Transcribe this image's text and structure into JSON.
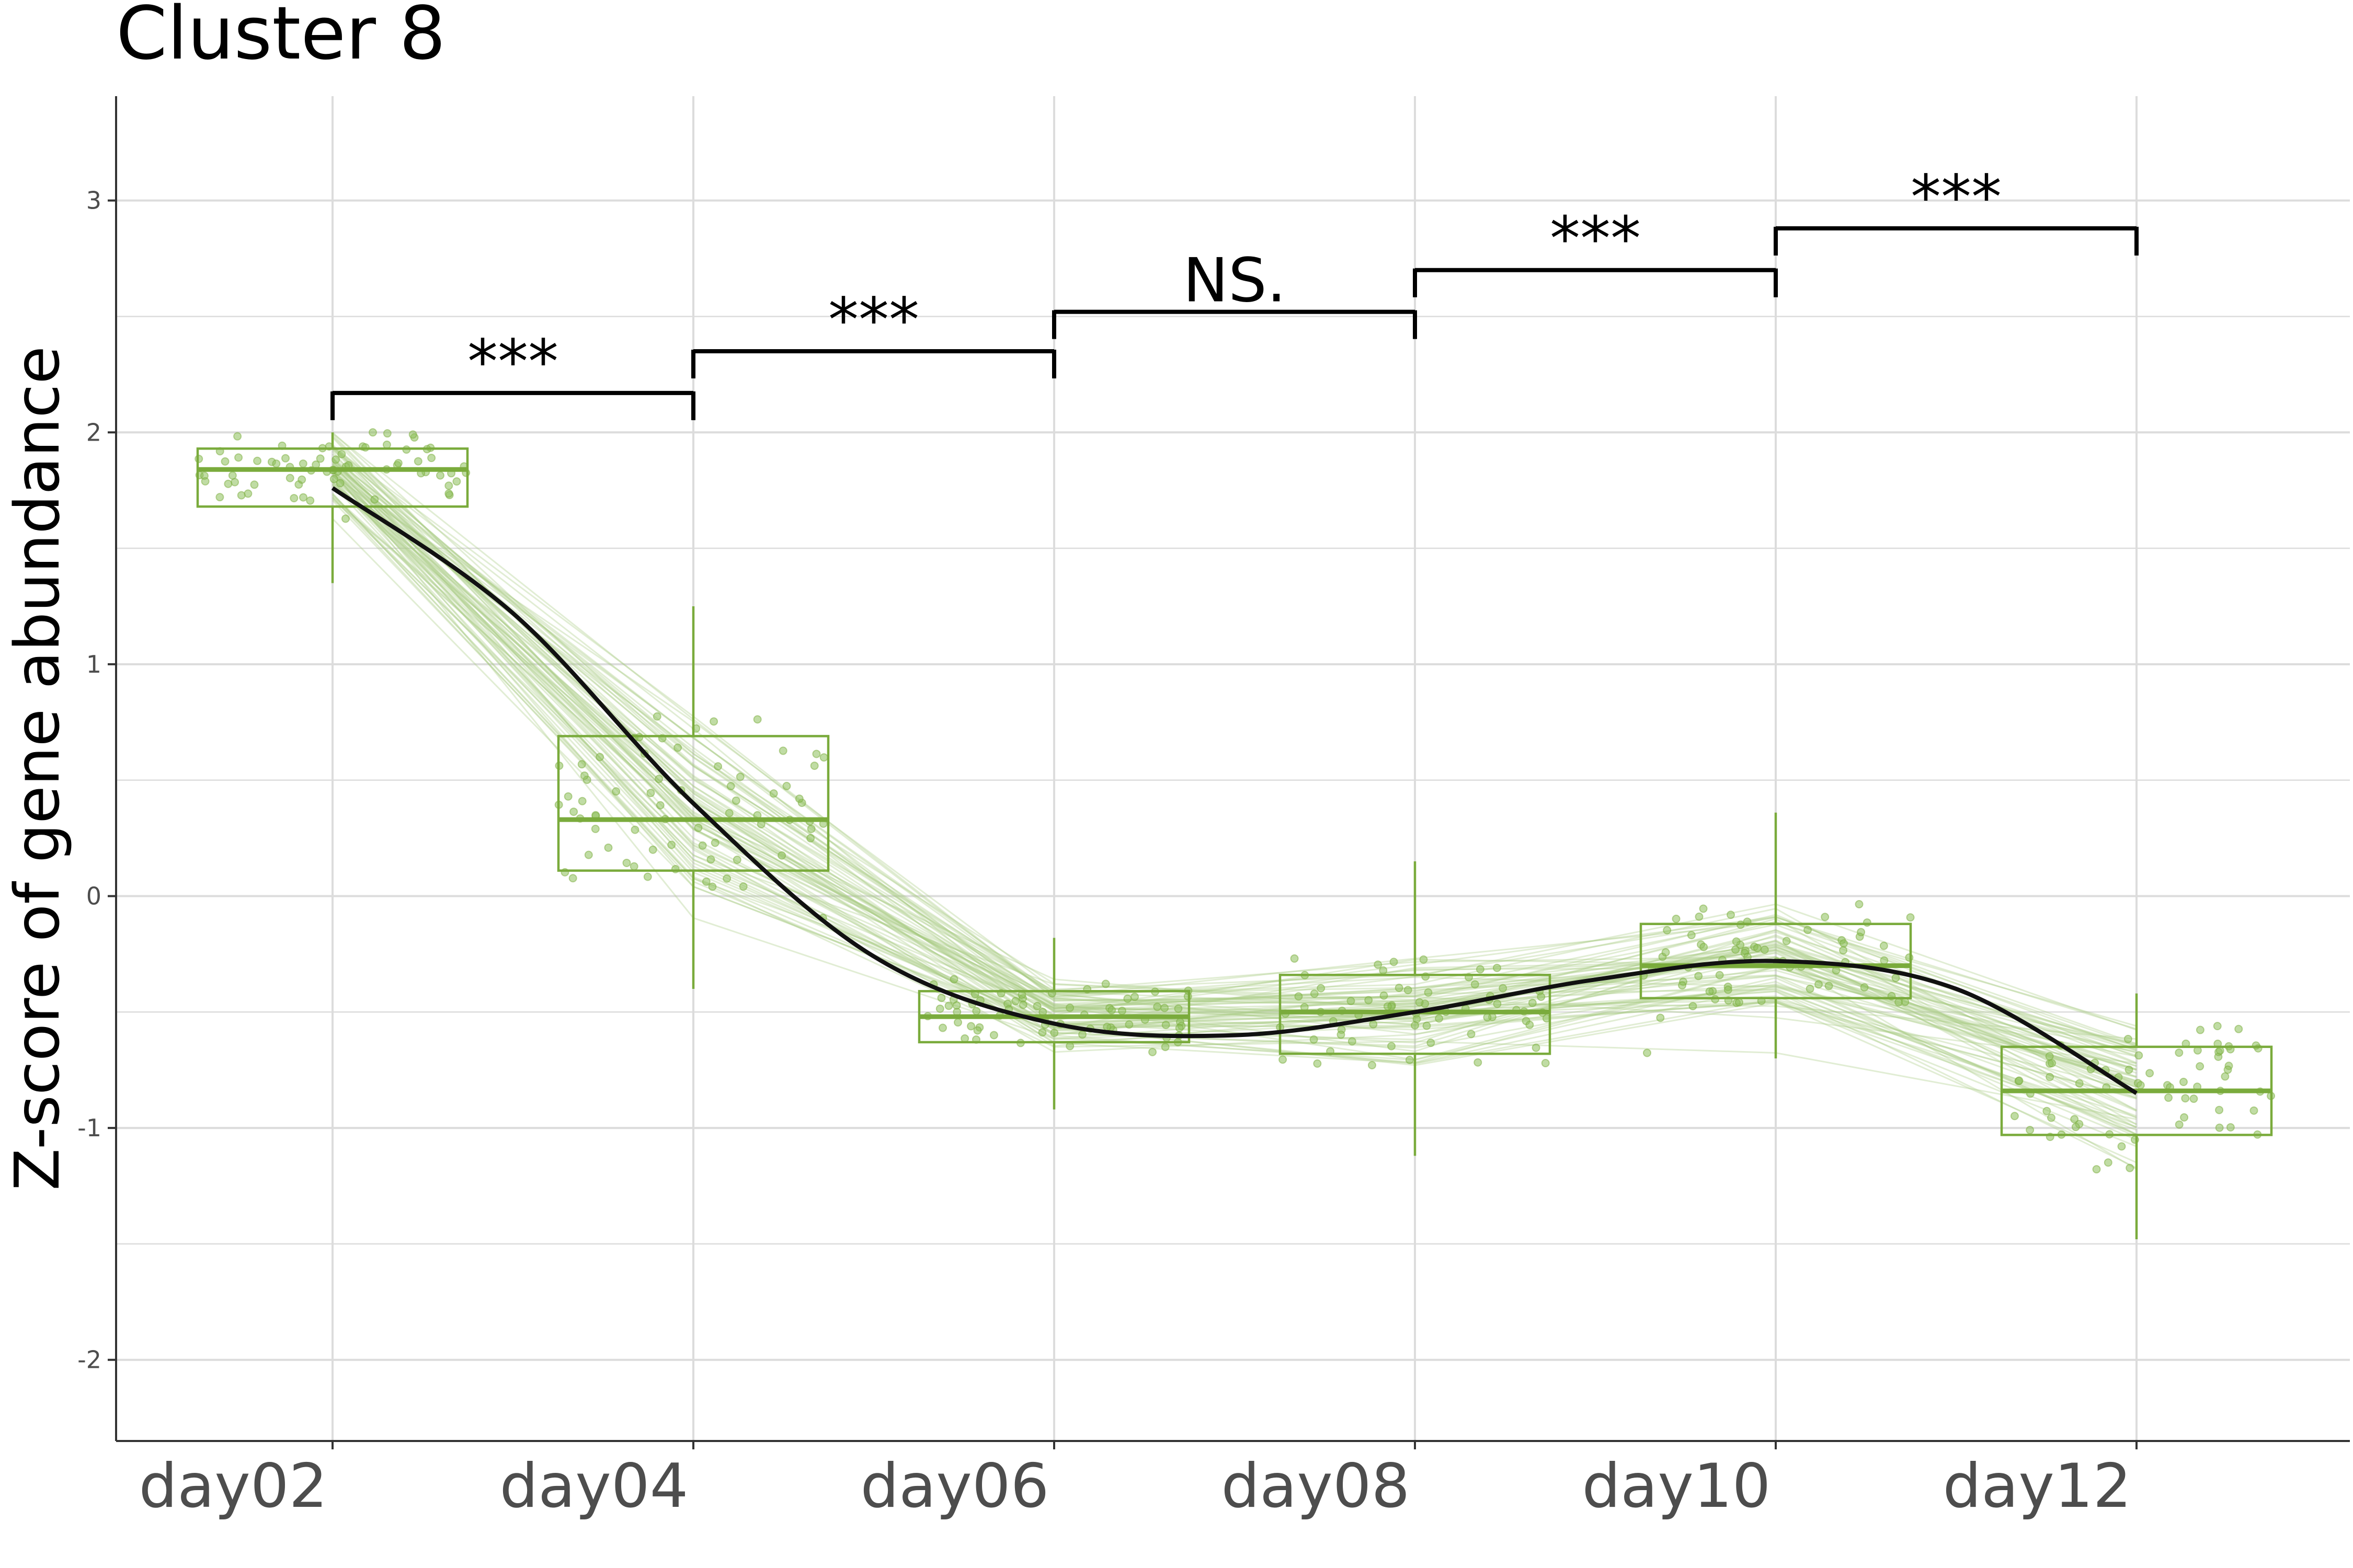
{
  "chart_data": {
    "type": "box",
    "title": "Cluster 8",
    "xlabel": "",
    "ylabel": "Z-score of gene abundance",
    "categories": [
      "day02",
      "day04",
      "day06",
      "day08",
      "day10",
      "day12"
    ],
    "ylim": [
      -2.35,
      3.45
    ],
    "yticks": [
      -2,
      -1,
      0,
      1,
      2,
      3
    ],
    "ytick_labels": [
      "-2",
      "-1",
      "0",
      "1",
      "2",
      "3"
    ],
    "grid": true,
    "boxes": [
      {
        "category": "day02",
        "q1": 1.68,
        "median": 1.84,
        "q3": 1.93,
        "whisker_low": 1.35,
        "whisker_high": 2.0
      },
      {
        "category": "day04",
        "q1": 0.11,
        "median": 0.33,
        "q3": 0.69,
        "whisker_low": -0.4,
        "whisker_high": 1.25
      },
      {
        "category": "day06",
        "q1": -0.63,
        "median": -0.52,
        "q3": -0.41,
        "whisker_low": -0.92,
        "whisker_high": -0.18
      },
      {
        "category": "day08",
        "q1": -0.68,
        "median": -0.5,
        "q3": -0.34,
        "whisker_low": -1.12,
        "whisker_high": 0.15
      },
      {
        "category": "day10",
        "q1": -0.44,
        "median": -0.3,
        "q3": -0.12,
        "whisker_low": -0.7,
        "whisker_high": 0.36
      },
      {
        "category": "day12",
        "q1": -1.03,
        "median": -0.84,
        "q3": -0.65,
        "whisker_low": -1.48,
        "whisker_high": -0.42
      }
    ],
    "trend_line": {
      "x": [
        0,
        0.5,
        1,
        1.5,
        2,
        2.5,
        3,
        3.5,
        4,
        4.5,
        5
      ],
      "y": [
        1.76,
        1.22,
        0.4,
        -0.26,
        -0.55,
        -0.6,
        -0.5,
        -0.36,
        -0.28,
        -0.4,
        -0.85
      ]
    },
    "significance": [
      {
        "from": "day02",
        "to": "day04",
        "y": 2.17,
        "label": "***"
      },
      {
        "from": "day04",
        "to": "day06",
        "y": 2.35,
        "label": "***"
      },
      {
        "from": "day06",
        "to": "day08",
        "y": 2.52,
        "label": "NS."
      },
      {
        "from": "day08",
        "to": "day10",
        "y": 2.7,
        "label": "***"
      },
      {
        "from": "day10",
        "to": "day12",
        "y": 2.88,
        "label": "***"
      }
    ],
    "colors": {
      "box": "#7aab3c",
      "points": "#8dbf5a",
      "gene_lines": "#a8cc84",
      "trend": "#111111",
      "grid": "#dcdcdc",
      "axis": "#333333",
      "tick_label": "#4d4d4d"
    }
  }
}
